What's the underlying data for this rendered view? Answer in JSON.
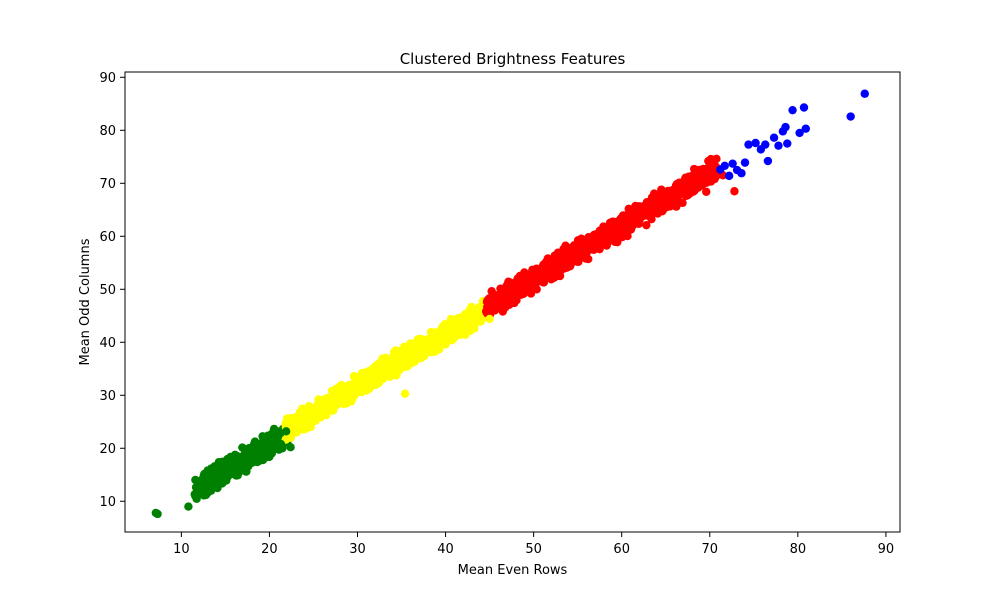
{
  "chart_data": {
    "type": "scatter",
    "title": "Clustered Brightness Features",
    "xlabel": "Mean Even Rows",
    "ylabel": "Mean Odd Columns",
    "xlim": [
      3.6,
      91.6
    ],
    "ylim": [
      4.2,
      91.0
    ],
    "xticks": [
      10,
      20,
      30,
      40,
      50,
      60,
      70,
      80,
      90
    ],
    "yticks": [
      10,
      20,
      30,
      40,
      50,
      60,
      70,
      80,
      90
    ],
    "grid": false,
    "legend": "none",
    "series": [
      {
        "color": "#008000",
        "x_range": [
          7,
          22.5
        ],
        "trend": "y ≈ x + 0.8",
        "points": [
          [
            7.1,
            7.8
          ],
          [
            7.3,
            7.6
          ],
          [
            10.8,
            9.0
          ],
          [
            11.6,
            11.0
          ],
          [
            12.0,
            12.5
          ],
          [
            12.8,
            11.2
          ],
          [
            13.2,
            14.2
          ],
          [
            13.8,
            12.8
          ],
          [
            14.3,
            15.6
          ],
          [
            15.1,
            13.9
          ],
          [
            15.8,
            16.8
          ],
          [
            16.4,
            14.9
          ],
          [
            17.0,
            18.2
          ],
          [
            17.6,
            16.6
          ],
          [
            18.2,
            19.4
          ],
          [
            18.9,
            18.1
          ],
          [
            19.5,
            21.0
          ],
          [
            20.1,
            19.3
          ],
          [
            20.7,
            22.4
          ],
          [
            21.3,
            20.8
          ],
          [
            21.9,
            23.2
          ],
          [
            22.4,
            20.2
          ]
        ]
      },
      {
        "color": "#ffff00",
        "x_range": [
          21.5,
          46
        ],
        "trend": "y ≈ x + 1.5",
        "points": [
          [
            22.0,
            25.6
          ],
          [
            23.1,
            23.0
          ],
          [
            24.5,
            27.9
          ],
          [
            25.8,
            25.8
          ],
          [
            27.2,
            30.2
          ],
          [
            28.4,
            28.4
          ],
          [
            29.6,
            33.6
          ],
          [
            31.0,
            30.9
          ],
          [
            32.3,
            35.8
          ],
          [
            33.7,
            33.5
          ],
          [
            35.4,
            30.3
          ],
          [
            35.9,
            39.4
          ],
          [
            37.2,
            37.0
          ],
          [
            38.6,
            41.8
          ],
          [
            40.0,
            39.6
          ],
          [
            41.3,
            44.4
          ],
          [
            42.7,
            42.1
          ],
          [
            43.8,
            46.6
          ],
          [
            45.0,
            44.4
          ]
        ]
      },
      {
        "color": "#ff0000",
        "x_range": [
          44,
          73.3
        ],
        "trend": "y ≈ x + 2",
        "points": [
          [
            45.0,
            48.3
          ],
          [
            46.5,
            45.8
          ],
          [
            48.0,
            51.4
          ],
          [
            49.7,
            49.2
          ],
          [
            51.4,
            55.1
          ],
          [
            53.0,
            52.5
          ],
          [
            54.6,
            58.3
          ],
          [
            56.2,
            55.7
          ],
          [
            57.8,
            61.2
          ],
          [
            59.5,
            58.9
          ],
          [
            61.2,
            64.6
          ],
          [
            62.8,
            62.1
          ],
          [
            64.5,
            68.8
          ],
          [
            66.2,
            65.6
          ],
          [
            67.7,
            70.2
          ],
          [
            69.6,
            68.4
          ],
          [
            71.5,
            71.5
          ],
          [
            72.8,
            68.5
          ]
        ]
      },
      {
        "color": "#0000ff",
        "x_range": [
          71,
          88
        ],
        "points": [
          [
            71.2,
            72.6
          ],
          [
            71.7,
            73.3
          ],
          [
            72.2,
            71.4
          ],
          [
            72.6,
            73.7
          ],
          [
            73.1,
            72.5
          ],
          [
            73.6,
            71.9
          ],
          [
            74.0,
            73.9
          ],
          [
            74.4,
            77.3
          ],
          [
            75.2,
            77.6
          ],
          [
            75.8,
            76.4
          ],
          [
            76.3,
            77.3
          ],
          [
            76.6,
            74.2
          ],
          [
            77.3,
            78.6
          ],
          [
            77.8,
            77.1
          ],
          [
            78.3,
            79.8
          ],
          [
            78.6,
            80.6
          ],
          [
            78.8,
            77.5
          ],
          [
            79.4,
            83.8
          ],
          [
            80.2,
            79.5
          ],
          [
            80.7,
            84.3
          ],
          [
            80.9,
            80.3
          ],
          [
            86.0,
            82.6
          ],
          [
            87.6,
            86.9
          ]
        ]
      }
    ]
  }
}
